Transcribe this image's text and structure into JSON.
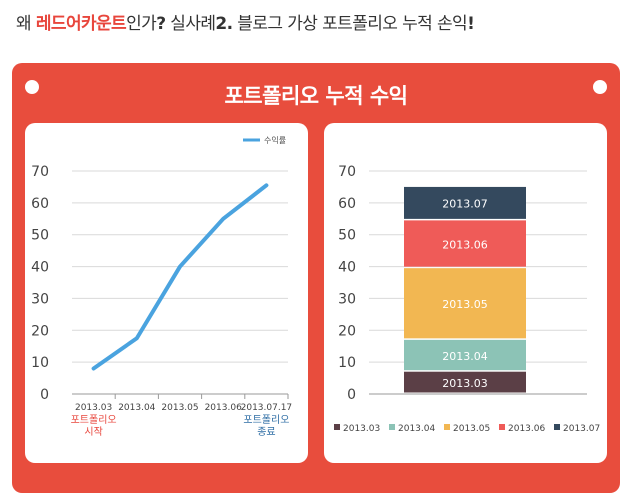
{
  "headline": {
    "prefix": "왜 ",
    "accent": "레드어카운트",
    "mid": "인가",
    "q": "?",
    "sp1": " 실사례",
    "num": "2.",
    "rest": " 블로그 가상 포트폴리오 누적 손익",
    "bang": "!"
  },
  "panel_title": "포트폴리오 누적 수익",
  "colors": {
    "panel": "#e84d3d",
    "line": "#4aa3df",
    "accent_red": "#e8463c",
    "accent_blue": "#2e6da4"
  },
  "chart_data": [
    {
      "type": "line",
      "legend": {
        "label": "수익률",
        "position": "top-right",
        "color": "#4aa3df"
      },
      "x_categories": [
        "2013.03",
        "2013.04",
        "2013.05",
        "2013.06",
        "2013.07.17"
      ],
      "x_annotations": [
        {
          "index": 0,
          "lines": [
            "포트폴리오",
            "시작"
          ],
          "color": "#e8463c"
        },
        {
          "index": 4,
          "lines": [
            "포트폴리오",
            "종료"
          ],
          "color": "#2e6da4"
        }
      ],
      "series": [
        {
          "name": "수익률",
          "values": [
            8,
            17.5,
            40,
            55,
            65.5
          ]
        }
      ],
      "yticks": [
        "0",
        "10",
        "20",
        "30",
        "40",
        "50",
        "60",
        "70"
      ],
      "ylim": [
        0,
        70
      ],
      "grid": true
    },
    {
      "type": "bar",
      "stacked": true,
      "categories": [
        "2013.03",
        "2013.04",
        "2013.05",
        "2013.06",
        "2013.07"
      ],
      "segments": [
        {
          "label": "2013.03",
          "from": 0,
          "to": 7,
          "color": "#5b3f46"
        },
        {
          "label": "2013.04",
          "from": 7,
          "to": 17,
          "color": "#8cc3b6"
        },
        {
          "label": "2013.05",
          "from": 17,
          "to": 39.5,
          "color": "#f2b752"
        },
        {
          "label": "2013.06",
          "from": 39.5,
          "to": 54.5,
          "color": "#ef5b58"
        },
        {
          "label": "2013.07",
          "from": 54.5,
          "to": 65,
          "color": "#34495e"
        }
      ],
      "legend": {
        "position": "bottom",
        "items": [
          {
            "label": "2013.03",
            "color": "#5b3f46"
          },
          {
            "label": "2013.04",
            "color": "#8cc3b6"
          },
          {
            "label": "2013.05",
            "color": "#f2b752"
          },
          {
            "label": "2013.06",
            "color": "#ef5b58"
          },
          {
            "label": "2013.07",
            "color": "#34495e"
          }
        ]
      },
      "yticks": [
        "0",
        "10",
        "20",
        "30",
        "40",
        "50",
        "60",
        "70"
      ],
      "ylim": [
        0,
        70
      ],
      "grid": true
    }
  ]
}
